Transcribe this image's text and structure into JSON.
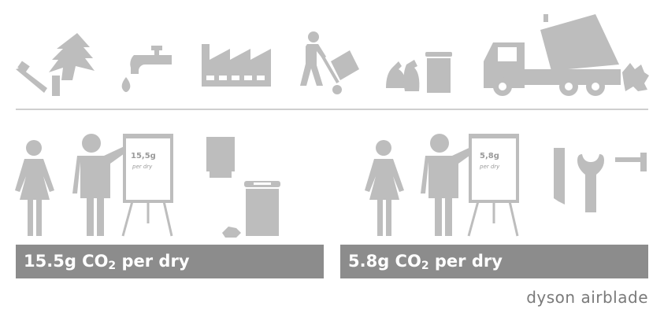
{
  "lifecycle_icons": [
    "chainsaw-tree-icon",
    "water-tap-icon",
    "factory-icon",
    "hand-truck-delivery-icon",
    "waste-bags-bin-icon",
    "garbage-truck-icon"
  ],
  "left_scene": {
    "flipchart_value": "15,5g",
    "flipchart_unit": "per dry",
    "bar_prefix": "15.5g CO",
    "bar_subscript": "2",
    "bar_suffix": " per dry"
  },
  "right_scene": {
    "flipchart_value": "5,8g",
    "flipchart_unit": "per dry",
    "bar_prefix": "5.8g CO",
    "bar_subscript": "2",
    "bar_suffix": " per dry"
  },
  "brand": {
    "logo_text": "dyson airblade"
  },
  "colors": {
    "icon_grey": "#bdbdbd",
    "bar_grey": "#8c8c8c",
    "divider": "#cfcfcf"
  }
}
